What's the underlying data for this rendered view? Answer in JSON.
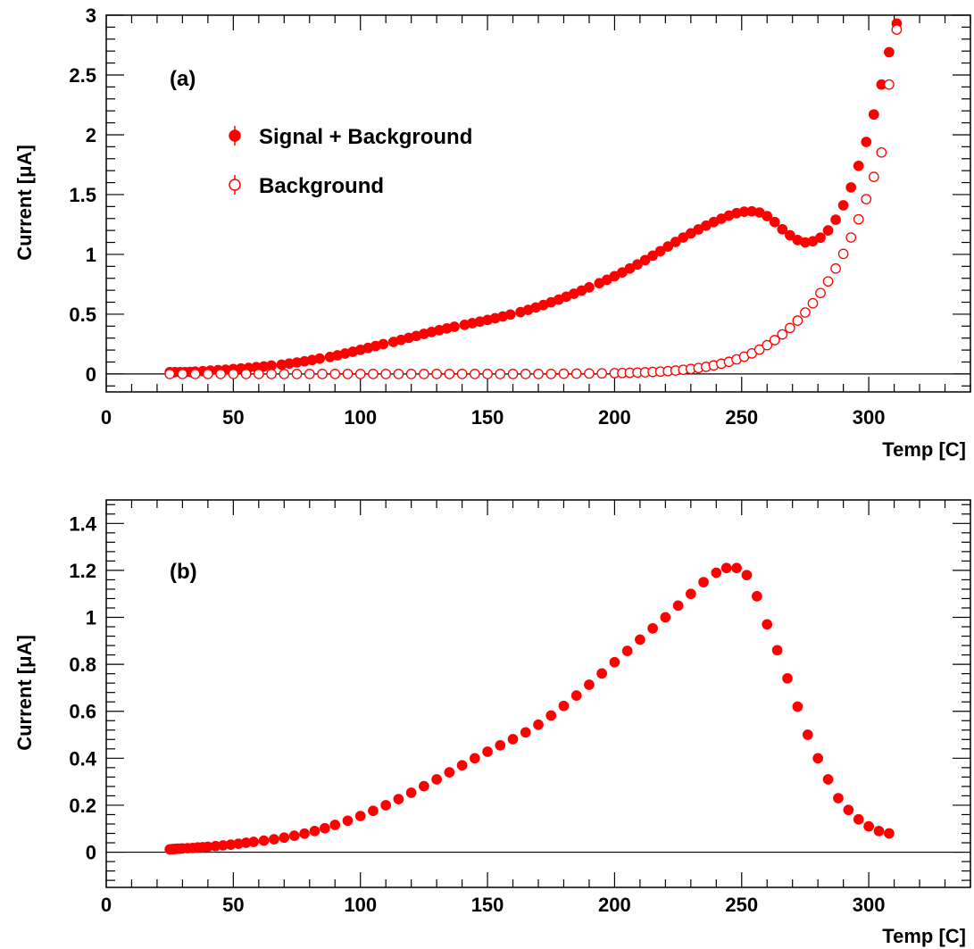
{
  "colors": {
    "marker": "#ff0000",
    "axis": "#000000",
    "background": "#ffffff"
  },
  "chart_data": [
    {
      "type": "scatter",
      "panel_label": "(a)",
      "xlabel": "Temp [C]",
      "ylabel": "Current [μA]",
      "xlim": [
        0,
        340
      ],
      "ylim": [
        -0.15,
        3.0
      ],
      "x_ticks": [
        0,
        50,
        100,
        150,
        200,
        250,
        300
      ],
      "y_ticks": [
        0,
        0.5,
        1,
        1.5,
        2,
        2.5,
        3
      ],
      "y_tick_labels": [
        "0",
        "0.5",
        "1",
        "1.5",
        "2",
        "2.5",
        "3"
      ],
      "zero_line": true,
      "legend_position": "upper-left",
      "series": [
        {
          "name": "Signal + Background",
          "marker": "filled-circle",
          "x": [
            25,
            27,
            29,
            31,
            33,
            35,
            38,
            41,
            44,
            47,
            50,
            53,
            56,
            59,
            62,
            65,
            69,
            72,
            75,
            78,
            81,
            84,
            88,
            91,
            94,
            97,
            100,
            103,
            106,
            109,
            113,
            116,
            119,
            122,
            125,
            128,
            131,
            134,
            137,
            141,
            144,
            147,
            150,
            153,
            156,
            159,
            163,
            166,
            169,
            172,
            175,
            178,
            181,
            184,
            187,
            190,
            194,
            197,
            200,
            203,
            206,
            209,
            212,
            215,
            218,
            221,
            224,
            227,
            230,
            233,
            236,
            239,
            242,
            245,
            248,
            251,
            254,
            257,
            260,
            263,
            266,
            269,
            272,
            275,
            278,
            281,
            284,
            287,
            290,
            293,
            296,
            299,
            302,
            305,
            308,
            311
          ],
          "y": [
            0.015,
            0.015,
            0.015,
            0.015,
            0.017,
            0.02,
            0.024,
            0.028,
            0.032,
            0.036,
            0.041,
            0.046,
            0.051,
            0.057,
            0.063,
            0.07,
            0.078,
            0.087,
            0.096,
            0.106,
            0.117,
            0.129,
            0.142,
            0.156,
            0.171,
            0.186,
            0.202,
            0.218,
            0.234,
            0.25,
            0.268,
            0.285,
            0.302,
            0.318,
            0.335,
            0.351,
            0.366,
            0.381,
            0.395,
            0.411,
            0.425,
            0.438,
            0.452,
            0.466,
            0.481,
            0.497,
            0.517,
            0.536,
            0.556,
            0.577,
            0.599,
            0.622,
            0.646,
            0.671,
            0.697,
            0.724,
            0.759,
            0.788,
            0.818,
            0.849,
            0.882,
            0.916,
            0.952,
            0.989,
            1.027,
            1.066,
            1.104,
            1.141,
            1.176,
            1.209,
            1.24,
            1.27,
            1.298,
            1.324,
            1.345,
            1.357,
            1.36,
            1.35,
            1.32,
            1.27,
            1.21,
            1.16,
            1.12,
            1.1,
            1.11,
            1.14,
            1.2,
            1.29,
            1.41,
            1.56,
            1.74,
            1.94,
            2.17,
            2.42,
            2.69,
            2.93
          ]
        },
        {
          "name": "Background",
          "marker": "open-circle",
          "x": [
            25,
            30,
            35,
            40,
            45,
            50,
            55,
            60,
            65,
            70,
            75,
            80,
            85,
            90,
            95,
            100,
            105,
            110,
            115,
            120,
            125,
            130,
            135,
            140,
            145,
            150,
            155,
            160,
            165,
            170,
            175,
            180,
            185,
            190,
            195,
            200,
            203,
            206,
            209,
            212,
            215,
            218,
            221,
            224,
            227,
            230,
            233,
            236,
            239,
            242,
            245,
            248,
            251,
            254,
            257,
            260,
            263,
            266,
            269,
            272,
            275,
            278,
            281,
            284,
            287,
            290,
            293,
            296,
            299,
            302,
            305,
            308,
            311
          ],
          "y": [
            0,
            0,
            0,
            0,
            0,
            0,
            0,
            0,
            0,
            0,
            0,
            0,
            0,
            0,
            0,
            0,
            0,
            0,
            0,
            0,
            0,
            0,
            0,
            0,
            0,
            0,
            0,
            0,
            0,
            0,
            0,
            0.002,
            0.003,
            0.004,
            0.005,
            0.007,
            0.008,
            0.01,
            0.012,
            0.014,
            0.017,
            0.02,
            0.024,
            0.029,
            0.035,
            0.042,
            0.05,
            0.06,
            0.072,
            0.086,
            0.102,
            0.122,
            0.145,
            0.172,
            0.204,
            0.241,
            0.283,
            0.331,
            0.385,
            0.446,
            0.514,
            0.591,
            0.677,
            0.774,
            0.882,
            1.004,
            1.141,
            1.293,
            1.462,
            1.648,
            1.852,
            2.42,
            2.88
          ]
        }
      ]
    },
    {
      "type": "scatter",
      "panel_label": "(b)",
      "xlabel": "Temp [C]",
      "ylabel": "Current [μA]",
      "xlim": [
        0,
        340
      ],
      "ylim": [
        -0.15,
        1.5
      ],
      "x_ticks": [
        0,
        50,
        100,
        150,
        200,
        250,
        300
      ],
      "y_ticks": [
        0,
        0.2,
        0.4,
        0.6,
        0.8,
        1,
        1.2,
        1.4
      ],
      "y_tick_labels": [
        "0",
        "0.2",
        "0.4",
        "0.6",
        "0.8",
        "1",
        "1.2",
        "1.4"
      ],
      "zero_line": true,
      "series": [
        {
          "name": "",
          "marker": "filled-circle",
          "x": [
            25,
            26,
            27,
            28,
            29,
            30,
            32,
            34,
            36,
            38,
            40,
            43,
            46,
            49,
            52,
            55,
            58,
            62,
            66,
            70,
            74,
            78,
            82,
            86,
            90,
            95,
            100,
            105,
            110,
            115,
            120,
            125,
            130,
            135,
            140,
            145,
            150,
            155,
            160,
            165,
            170,
            175,
            180,
            185,
            190,
            195,
            200,
            205,
            210,
            215,
            220,
            225,
            230,
            235,
            240,
            244,
            248,
            252,
            256,
            260,
            264,
            268,
            272,
            276,
            280,
            284,
            288,
            292,
            296,
            300,
            304,
            308
          ],
          "y": [
            0.012,
            0.013,
            0.014,
            0.015,
            0.015,
            0.016,
            0.017,
            0.018,
            0.02,
            0.021,
            0.023,
            0.026,
            0.029,
            0.032,
            0.036,
            0.04,
            0.044,
            0.049,
            0.055,
            0.062,
            0.07,
            0.079,
            0.09,
            0.102,
            0.116,
            0.134,
            0.154,
            0.176,
            0.2,
            0.226,
            0.253,
            0.281,
            0.31,
            0.34,
            0.37,
            0.4,
            0.428,
            0.455,
            0.481,
            0.51,
            0.543,
            0.582,
            0.623,
            0.667,
            0.713,
            0.761,
            0.809,
            0.857,
            0.905,
            0.953,
            1.0,
            1.05,
            1.1,
            1.15,
            1.19,
            1.21,
            1.21,
            1.18,
            1.09,
            0.97,
            0.86,
            0.74,
            0.62,
            0.5,
            0.4,
            0.31,
            0.23,
            0.18,
            0.14,
            0.11,
            0.09,
            0.08
          ]
        }
      ]
    }
  ]
}
